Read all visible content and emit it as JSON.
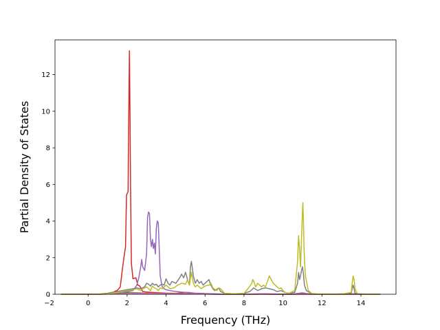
{
  "chart_data": {
    "type": "line",
    "title": "",
    "xlabel": "Frequency (THz)",
    "ylabel": "Partial Density of States",
    "xlim": [
      -1.7,
      15.8
    ],
    "ylim": [
      0,
      13.9
    ],
    "xticks": [
      -2,
      0,
      2,
      4,
      6,
      8,
      10,
      12,
      14
    ],
    "yticks": [
      0,
      2,
      4,
      6,
      8,
      10,
      12
    ],
    "xtick_labels": [
      "−2",
      "0",
      "2",
      "4",
      "6",
      "8",
      "10",
      "12",
      "14"
    ],
    "ytick_labels": [
      "0",
      "2",
      "4",
      "6",
      "8",
      "10",
      "12"
    ],
    "grid": false,
    "legend": false,
    "series": [
      {
        "color": "#1f77b4",
        "x": [
          -1.4,
          0.5,
          1.0,
          1.5,
          1.8,
          2.0,
          2.5,
          3.0,
          3.5,
          4.0,
          4.5,
          5.0,
          5.5,
          6.0,
          6.5,
          7.0,
          7.5,
          8.0,
          8.5,
          9.0,
          9.5,
          10.0,
          10.5,
          11.0,
          11.5,
          12.0,
          13.0,
          13.6,
          14.0,
          15.0
        ],
        "values": [
          0,
          0,
          0.01,
          0.02,
          0.03,
          0.05,
          0.04,
          0.03,
          0.02,
          0.02,
          0.02,
          0.01,
          0.01,
          0.01,
          0,
          0,
          0,
          0,
          0.01,
          0.01,
          0.01,
          0,
          0,
          0.02,
          0,
          0,
          0,
          0.01,
          0,
          0
        ]
      },
      {
        "color": "#ff7f0e",
        "x": [
          -1.4,
          0.5,
          1.0,
          1.5,
          1.8,
          2.0,
          2.5,
          3.0,
          3.5,
          4.0,
          4.5,
          5.0,
          5.5,
          6.0,
          6.5,
          7.0,
          8.0,
          9.0,
          10.0,
          11.0,
          12.0,
          13.6,
          15.0
        ],
        "values": [
          0,
          0,
          0.02,
          0.03,
          0.05,
          0.08,
          0.06,
          0.05,
          0.04,
          0.03,
          0.03,
          0.02,
          0.02,
          0.01,
          0.01,
          0,
          0,
          0.01,
          0,
          0.02,
          0,
          0.01,
          0
        ]
      },
      {
        "color": "#2ca02c",
        "x": [
          -1.4,
          0.5,
          1.0,
          1.5,
          1.8,
          2.0,
          2.5,
          3.0,
          3.5,
          4.0,
          4.5,
          5.0,
          5.5,
          6.0,
          7.0,
          8.0,
          9.0,
          10.0,
          11.0,
          12.0,
          13.6,
          15.0
        ],
        "values": [
          0,
          0,
          0.02,
          0.04,
          0.06,
          0.1,
          0.08,
          0.06,
          0.05,
          0.04,
          0.03,
          0.03,
          0.02,
          0.01,
          0,
          0,
          0.01,
          0,
          0.02,
          0,
          0.01,
          0
        ]
      },
      {
        "color": "#d62728",
        "x": [
          -1.4,
          0.5,
          1.0,
          1.3,
          1.5,
          1.65,
          1.75,
          1.85,
          1.92,
          1.97,
          2.0,
          2.05,
          2.08,
          2.12,
          2.15,
          2.18,
          2.22,
          2.3,
          2.45,
          2.55,
          2.65,
          2.8,
          3.0,
          3.3,
          3.6,
          4.0,
          4.5,
          5.0,
          5.5,
          6.0,
          6.5,
          7.0,
          8.0,
          9.0,
          10.0,
          11.0,
          12.0,
          13.6,
          15.0
        ],
        "values": [
          0,
          0,
          0.05,
          0.12,
          0.22,
          0.4,
          1.3,
          2.1,
          2.6,
          5.4,
          5.5,
          5.6,
          9.2,
          13.3,
          9.8,
          5.6,
          1.7,
          0.85,
          0.9,
          0.5,
          0.45,
          0.15,
          0.12,
          0.1,
          0.08,
          0.06,
          0.05,
          0.1,
          0.05,
          0.03,
          0.02,
          0,
          0,
          0,
          0,
          0,
          0,
          0,
          0
        ]
      },
      {
        "color": "#9467bd",
        "x": [
          -1.4,
          0.5,
          1.0,
          1.5,
          2.0,
          2.3,
          2.5,
          2.6,
          2.7,
          2.75,
          2.8,
          2.9,
          3.0,
          3.05,
          3.1,
          3.15,
          3.2,
          3.25,
          3.3,
          3.35,
          3.4,
          3.45,
          3.5,
          3.55,
          3.6,
          3.65,
          3.7,
          3.8,
          3.9,
          4.0,
          4.2,
          4.5,
          4.8,
          5.0,
          5.2,
          5.3,
          5.5,
          5.8,
          6.0,
          6.3,
          6.6,
          7.0,
          8.0,
          8.5,
          9.0,
          9.5,
          10.0,
          10.5,
          10.8,
          11.0,
          11.2,
          12.0,
          13.6,
          15.0
        ],
        "values": [
          0,
          0,
          0.02,
          0.08,
          0.15,
          0.2,
          0.5,
          0.9,
          1.5,
          1.9,
          1.5,
          1.3,
          2.2,
          4.2,
          4.5,
          4.4,
          3.0,
          2.6,
          3.0,
          2.5,
          2.8,
          2.2,
          3.6,
          4.0,
          3.9,
          2.5,
          1.0,
          0.4,
          0.3,
          0.25,
          0.2,
          0.15,
          0.12,
          0.1,
          0.1,
          0.08,
          0.06,
          0.05,
          0.04,
          0.03,
          0.02,
          0,
          0,
          0.02,
          0.03,
          0.02,
          0.01,
          0,
          0.05,
          0.08,
          0.04,
          0,
          0.02,
          0
        ]
      },
      {
        "color": "#8c564b",
        "x": [
          -1.4,
          0.5,
          1.0,
          1.5,
          2.0,
          2.5,
          3.0,
          3.5,
          4.0,
          4.5,
          5.0,
          5.5,
          6.0,
          6.5,
          7.0,
          8.0,
          9.0,
          10.0,
          11.0,
          12.0,
          13.6,
          15.0
        ],
        "values": [
          0,
          0,
          0.01,
          0.03,
          0.05,
          0.08,
          0.06,
          0.05,
          0.04,
          0.04,
          0.03,
          0.02,
          0.02,
          0.01,
          0,
          0,
          0.01,
          0,
          0.03,
          0,
          0.02,
          0
        ]
      },
      {
        "color": "#e377c2",
        "x": [
          -1.4,
          0.5,
          1.0,
          1.5,
          2.0,
          2.5,
          3.0,
          3.5,
          4.0,
          4.5,
          5.0,
          5.5,
          6.0,
          7.0,
          8.0,
          9.0,
          10.0,
          11.0,
          12.0,
          13.6,
          15.0
        ],
        "values": [
          0,
          0,
          0.01,
          0.02,
          0.04,
          0.06,
          0.05,
          0.04,
          0.03,
          0.03,
          0.02,
          0.02,
          0.01,
          0,
          0,
          0.01,
          0,
          0.02,
          0,
          0.01,
          0
        ]
      },
      {
        "color": "#7f7f7f",
        "x": [
          -1.4,
          0.5,
          1.0,
          1.5,
          2.0,
          2.3,
          2.5,
          2.7,
          2.9,
          3.0,
          3.1,
          3.2,
          3.3,
          3.4,
          3.5,
          3.6,
          3.7,
          3.8,
          3.9,
          4.0,
          4.1,
          4.2,
          4.3,
          4.5,
          4.7,
          4.8,
          4.9,
          5.0,
          5.1,
          5.2,
          5.25,
          5.3,
          5.35,
          5.4,
          5.5,
          5.6,
          5.7,
          5.8,
          5.9,
          6.0,
          6.1,
          6.2,
          6.3,
          6.4,
          6.5,
          6.7,
          6.8,
          7.0,
          7.5,
          8.0,
          8.3,
          8.5,
          8.7,
          8.9,
          9.1,
          9.3,
          9.5,
          9.7,
          9.9,
          10.1,
          10.3,
          10.6,
          10.75,
          10.8,
          10.85,
          10.9,
          10.95,
          11.0,
          11.05,
          11.1,
          11.2,
          11.5,
          12.0,
          13.0,
          13.5,
          13.55,
          13.6,
          13.65,
          13.7,
          14.0,
          15.0
        ],
        "values": [
          0,
          0,
          0.05,
          0.15,
          0.25,
          0.3,
          0.35,
          0.3,
          0.4,
          0.6,
          0.55,
          0.45,
          0.6,
          0.5,
          0.55,
          0.4,
          0.5,
          0.55,
          0.5,
          0.85,
          0.6,
          0.5,
          0.7,
          0.6,
          0.9,
          1.1,
          0.9,
          1.2,
          0.8,
          0.5,
          1.5,
          1.8,
          1.4,
          1.0,
          0.6,
          0.8,
          0.6,
          0.7,
          0.5,
          0.6,
          0.7,
          0.8,
          0.5,
          0.3,
          0.2,
          0.35,
          0.15,
          0.05,
          0.02,
          0.05,
          0.15,
          0.35,
          0.2,
          0.3,
          0.35,
          0.3,
          0.25,
          0.15,
          0.2,
          0.1,
          0.05,
          0.1,
          0.6,
          1.2,
          0.8,
          1.0,
          1.3,
          1.5,
          1.1,
          0.5,
          0.2,
          0.03,
          0,
          0,
          0.05,
          0.3,
          0.5,
          0.3,
          0.05,
          0,
          0
        ]
      },
      {
        "color": "#bcbd22",
        "x": [
          -1.4,
          0.5,
          1.0,
          1.5,
          2.0,
          2.3,
          2.5,
          2.7,
          2.9,
          3.0,
          3.1,
          3.2,
          3.3,
          3.4,
          3.5,
          3.6,
          3.7,
          3.8,
          4.0,
          4.2,
          4.4,
          4.6,
          4.8,
          5.0,
          5.1,
          5.2,
          5.25,
          5.3,
          5.35,
          5.4,
          5.5,
          5.6,
          5.8,
          6.0,
          6.2,
          6.3,
          6.4,
          6.6,
          6.7,
          6.8,
          7.0,
          7.5,
          8.0,
          8.2,
          8.4,
          8.45,
          8.5,
          8.6,
          8.7,
          8.8,
          8.9,
          9.0,
          9.1,
          9.2,
          9.3,
          9.4,
          9.5,
          9.6,
          9.7,
          9.8,
          9.9,
          10.0,
          10.1,
          10.3,
          10.6,
          10.75,
          10.8,
          10.85,
          10.9,
          10.95,
          11.0,
          11.02,
          11.05,
          11.08,
          11.1,
          11.15,
          11.3,
          11.5,
          12.0,
          13.0,
          13.5,
          13.55,
          13.6,
          13.65,
          13.7,
          13.8,
          14.0,
          15.0
        ],
        "values": [
          0,
          0,
          0.03,
          0.1,
          0.2,
          0.25,
          0.3,
          0.2,
          0.35,
          0.4,
          0.3,
          0.2,
          0.45,
          0.35,
          0.3,
          0.2,
          0.35,
          0.3,
          0.5,
          0.3,
          0.35,
          0.5,
          0.6,
          0.55,
          0.8,
          0.5,
          0.9,
          1.2,
          0.9,
          0.6,
          0.4,
          0.5,
          0.3,
          0.45,
          0.5,
          0.6,
          0.35,
          0.2,
          0.35,
          0.3,
          0.05,
          0.02,
          0.05,
          0.3,
          0.6,
          0.8,
          0.7,
          0.4,
          0.6,
          0.5,
          0.4,
          0.5,
          0.4,
          0.7,
          1.0,
          0.8,
          0.6,
          0.5,
          0.4,
          0.3,
          0.35,
          0.2,
          0.1,
          0.05,
          0.2,
          1.8,
          3.2,
          2.5,
          1.5,
          3.0,
          4.5,
          5.0,
          4.0,
          2.5,
          2.0,
          1.0,
          0.2,
          0.02,
          0,
          0,
          0.1,
          0.6,
          1.0,
          0.8,
          0.3,
          0.05,
          0,
          0
        ]
      }
    ]
  }
}
